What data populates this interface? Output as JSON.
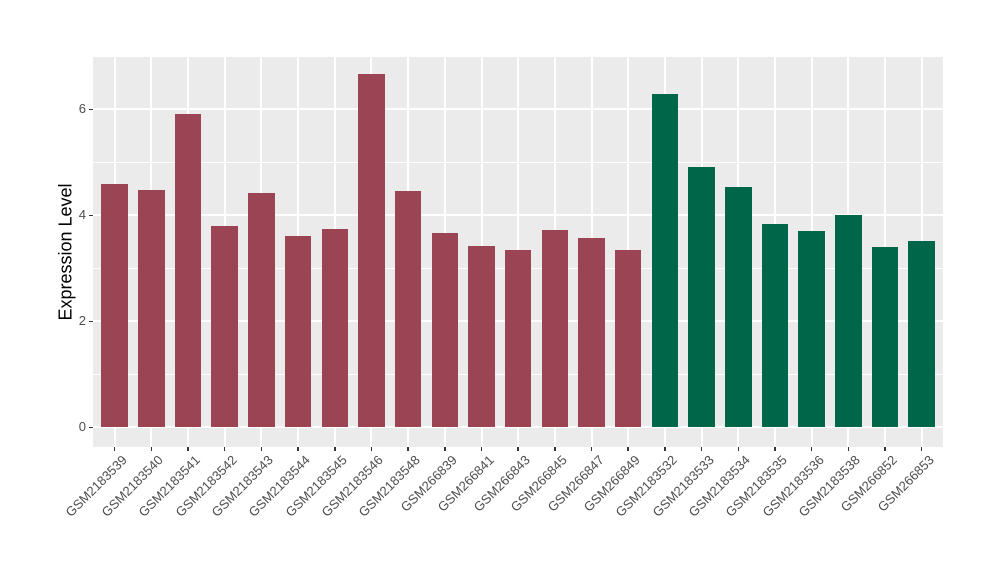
{
  "chart_data": {
    "type": "bar",
    "title": "",
    "xlabel": "",
    "ylabel": "Expression Level",
    "ylim": [
      -0.37,
      7.0
    ],
    "yticks": [
      0,
      2,
      4,
      6
    ],
    "yticks_minor": [
      1,
      3,
      5,
      7
    ],
    "grid": true,
    "legend_position": "none",
    "panel_background": "#EBEBEB",
    "grid_color": "#FFFFFF",
    "axis_text_color": "#4D4D4D",
    "axis_title_color": "#000000",
    "group_colors": [
      "#9B4453",
      "#006649"
    ],
    "categories": [
      "GSM2183539",
      "GSM2183540",
      "GSM2183541",
      "GSM2183542",
      "GSM2183543",
      "GSM2183544",
      "GSM2183545",
      "GSM2183546",
      "GSM2183548",
      "GSM266839",
      "GSM266841",
      "GSM266843",
      "GSM266845",
      "GSM266847",
      "GSM266849",
      "GSM2183532",
      "GSM2183533",
      "GSM2183534",
      "GSM2183535",
      "GSM2183536",
      "GSM2183538",
      "GSM266852",
      "GSM266853"
    ],
    "values": [
      4.6,
      4.48,
      5.92,
      3.8,
      4.42,
      3.61,
      3.74,
      6.67,
      4.46,
      3.67,
      3.43,
      3.35,
      3.73,
      3.57,
      3.35,
      6.28,
      4.91,
      4.54,
      3.83,
      3.7,
      4.01,
      3.4,
      3.52
    ],
    "groups": [
      0,
      0,
      0,
      0,
      0,
      0,
      0,
      0,
      0,
      0,
      0,
      0,
      0,
      0,
      0,
      1,
      1,
      1,
      1,
      1,
      1,
      1,
      1
    ]
  }
}
